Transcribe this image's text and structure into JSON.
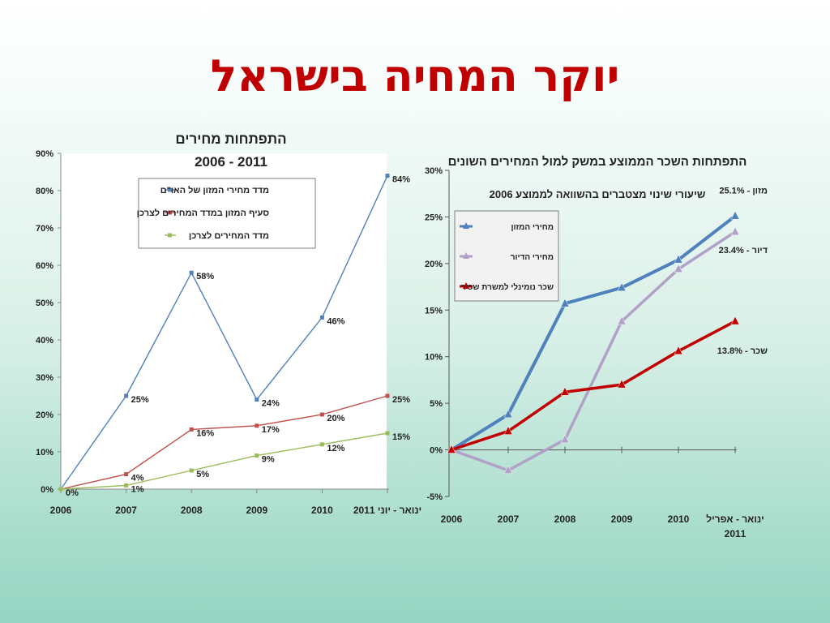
{
  "slide": {
    "title": "יוקר המחיה בישראל"
  },
  "chart_data": [
    {
      "type": "line",
      "title": "התפתחות מחירים",
      "subtitle": "2006 - 2011",
      "categories": [
        "2006",
        "2007",
        "2008",
        "2009",
        "2010",
        "ינואר - יוני 2011"
      ],
      "ylim": [
        0,
        90
      ],
      "yticks": [
        "0%",
        "10%",
        "20%",
        "30%",
        "40%",
        "50%",
        "60%",
        "70%",
        "80%",
        "90%"
      ],
      "grid": false,
      "legend_position": "top-center",
      "series": [
        {
          "name": "מדד מחירי המזון של האו\"ם",
          "color": "#4f81bd",
          "values": [
            0,
            25,
            58,
            24,
            46,
            84
          ],
          "labels": [
            "",
            "25%",
            "58%",
            "24%",
            "46%",
            "84%"
          ]
        },
        {
          "name": "סעיף המזון במדד המחירים לצרכן",
          "color": "#c0504d",
          "values": [
            0,
            4,
            16,
            17,
            20,
            25
          ],
          "labels": [
            "0%",
            "4%",
            "16%",
            "17%",
            "20%",
            "25%"
          ]
        },
        {
          "name": "מדד המחירים לצרכן",
          "color": "#9bbb59",
          "values": [
            0,
            1,
            5,
            9,
            12,
            15
          ],
          "labels": [
            "",
            "1%",
            "5%",
            "9%",
            "12%",
            "15%"
          ]
        }
      ]
    },
    {
      "type": "line",
      "title": "התפתחות השכר הממוצע במשק למול המחירים השונים",
      "subtitle": "שיעורי שינוי מצטברים בהשוואה לממוצע 2006",
      "categories": [
        "2006",
        "2007",
        "2008",
        "2009",
        "2010",
        "ינואר - אפריל 2011"
      ],
      "ylim": [
        -5,
        30
      ],
      "yticks": [
        "-5%",
        "0%",
        "5%",
        "10%",
        "15%",
        "20%",
        "25%",
        "30%"
      ],
      "grid": false,
      "legend_position": "top-left",
      "series": [
        {
          "name": "מחירי המזון",
          "color": "#4f81bd",
          "values": [
            0,
            3.8,
            15.7,
            17.4,
            20.4,
            25.1
          ],
          "end_label": "מזון - 25.1%"
        },
        {
          "name": "מחירי הדיור",
          "color": "#b2a1c7",
          "values": [
            0,
            -2.2,
            1.1,
            13.8,
            19.4,
            23.4
          ],
          "end_label": "דיור - 23.4%"
        },
        {
          "name": "שכר נומינלי למשרת שכיר",
          "color": "#c00000",
          "values": [
            0,
            2.0,
            6.2,
            7.0,
            10.6,
            13.8
          ],
          "end_label": "שכר - 13.8%"
        }
      ]
    }
  ]
}
